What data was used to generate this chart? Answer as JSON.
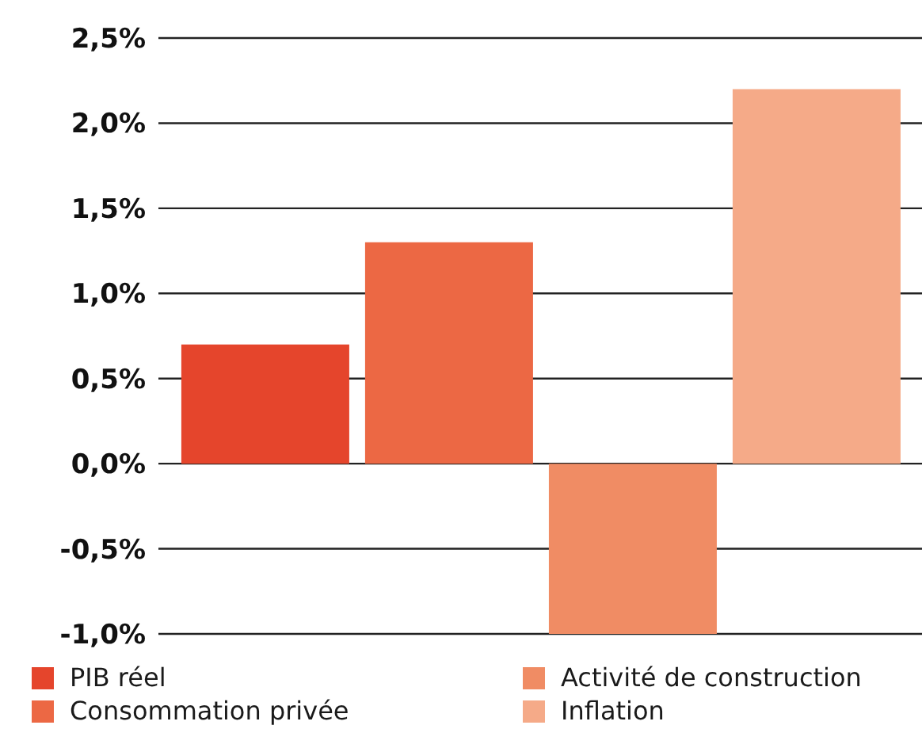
{
  "chart_data": {
    "type": "bar",
    "categories": [
      null
    ],
    "series": [
      {
        "name": "PIB réel",
        "color": "#e5452c",
        "values": [
          0.7
        ]
      },
      {
        "name": "Consommation privée",
        "color": "#ec6844",
        "values": [
          1.3
        ]
      },
      {
        "name": "Activité de construction",
        "color": "#f08c64",
        "values": [
          -1.0
        ]
      },
      {
        "name": "Inflation",
        "color": "#f5aa88",
        "values": [
          2.2
        ]
      }
    ],
    "ylim": [
      -1.0,
      2.5
    ],
    "yticks": [
      {
        "value": -1.0,
        "label": "-1,0%"
      },
      {
        "value": -0.5,
        "label": "-0,5%"
      },
      {
        "value": 0,
        "label": "0,0%"
      },
      {
        "value": 0.5,
        "label": "0,5%"
      },
      {
        "value": 1.0,
        "label": "1,0%"
      },
      {
        "value": 1.5,
        "label": "1,5%"
      },
      {
        "value": 2.0,
        "label": "2,0%"
      },
      {
        "value": 2.5,
        "label": "2,5%"
      }
    ],
    "grid": "y",
    "legend": "bottom"
  }
}
